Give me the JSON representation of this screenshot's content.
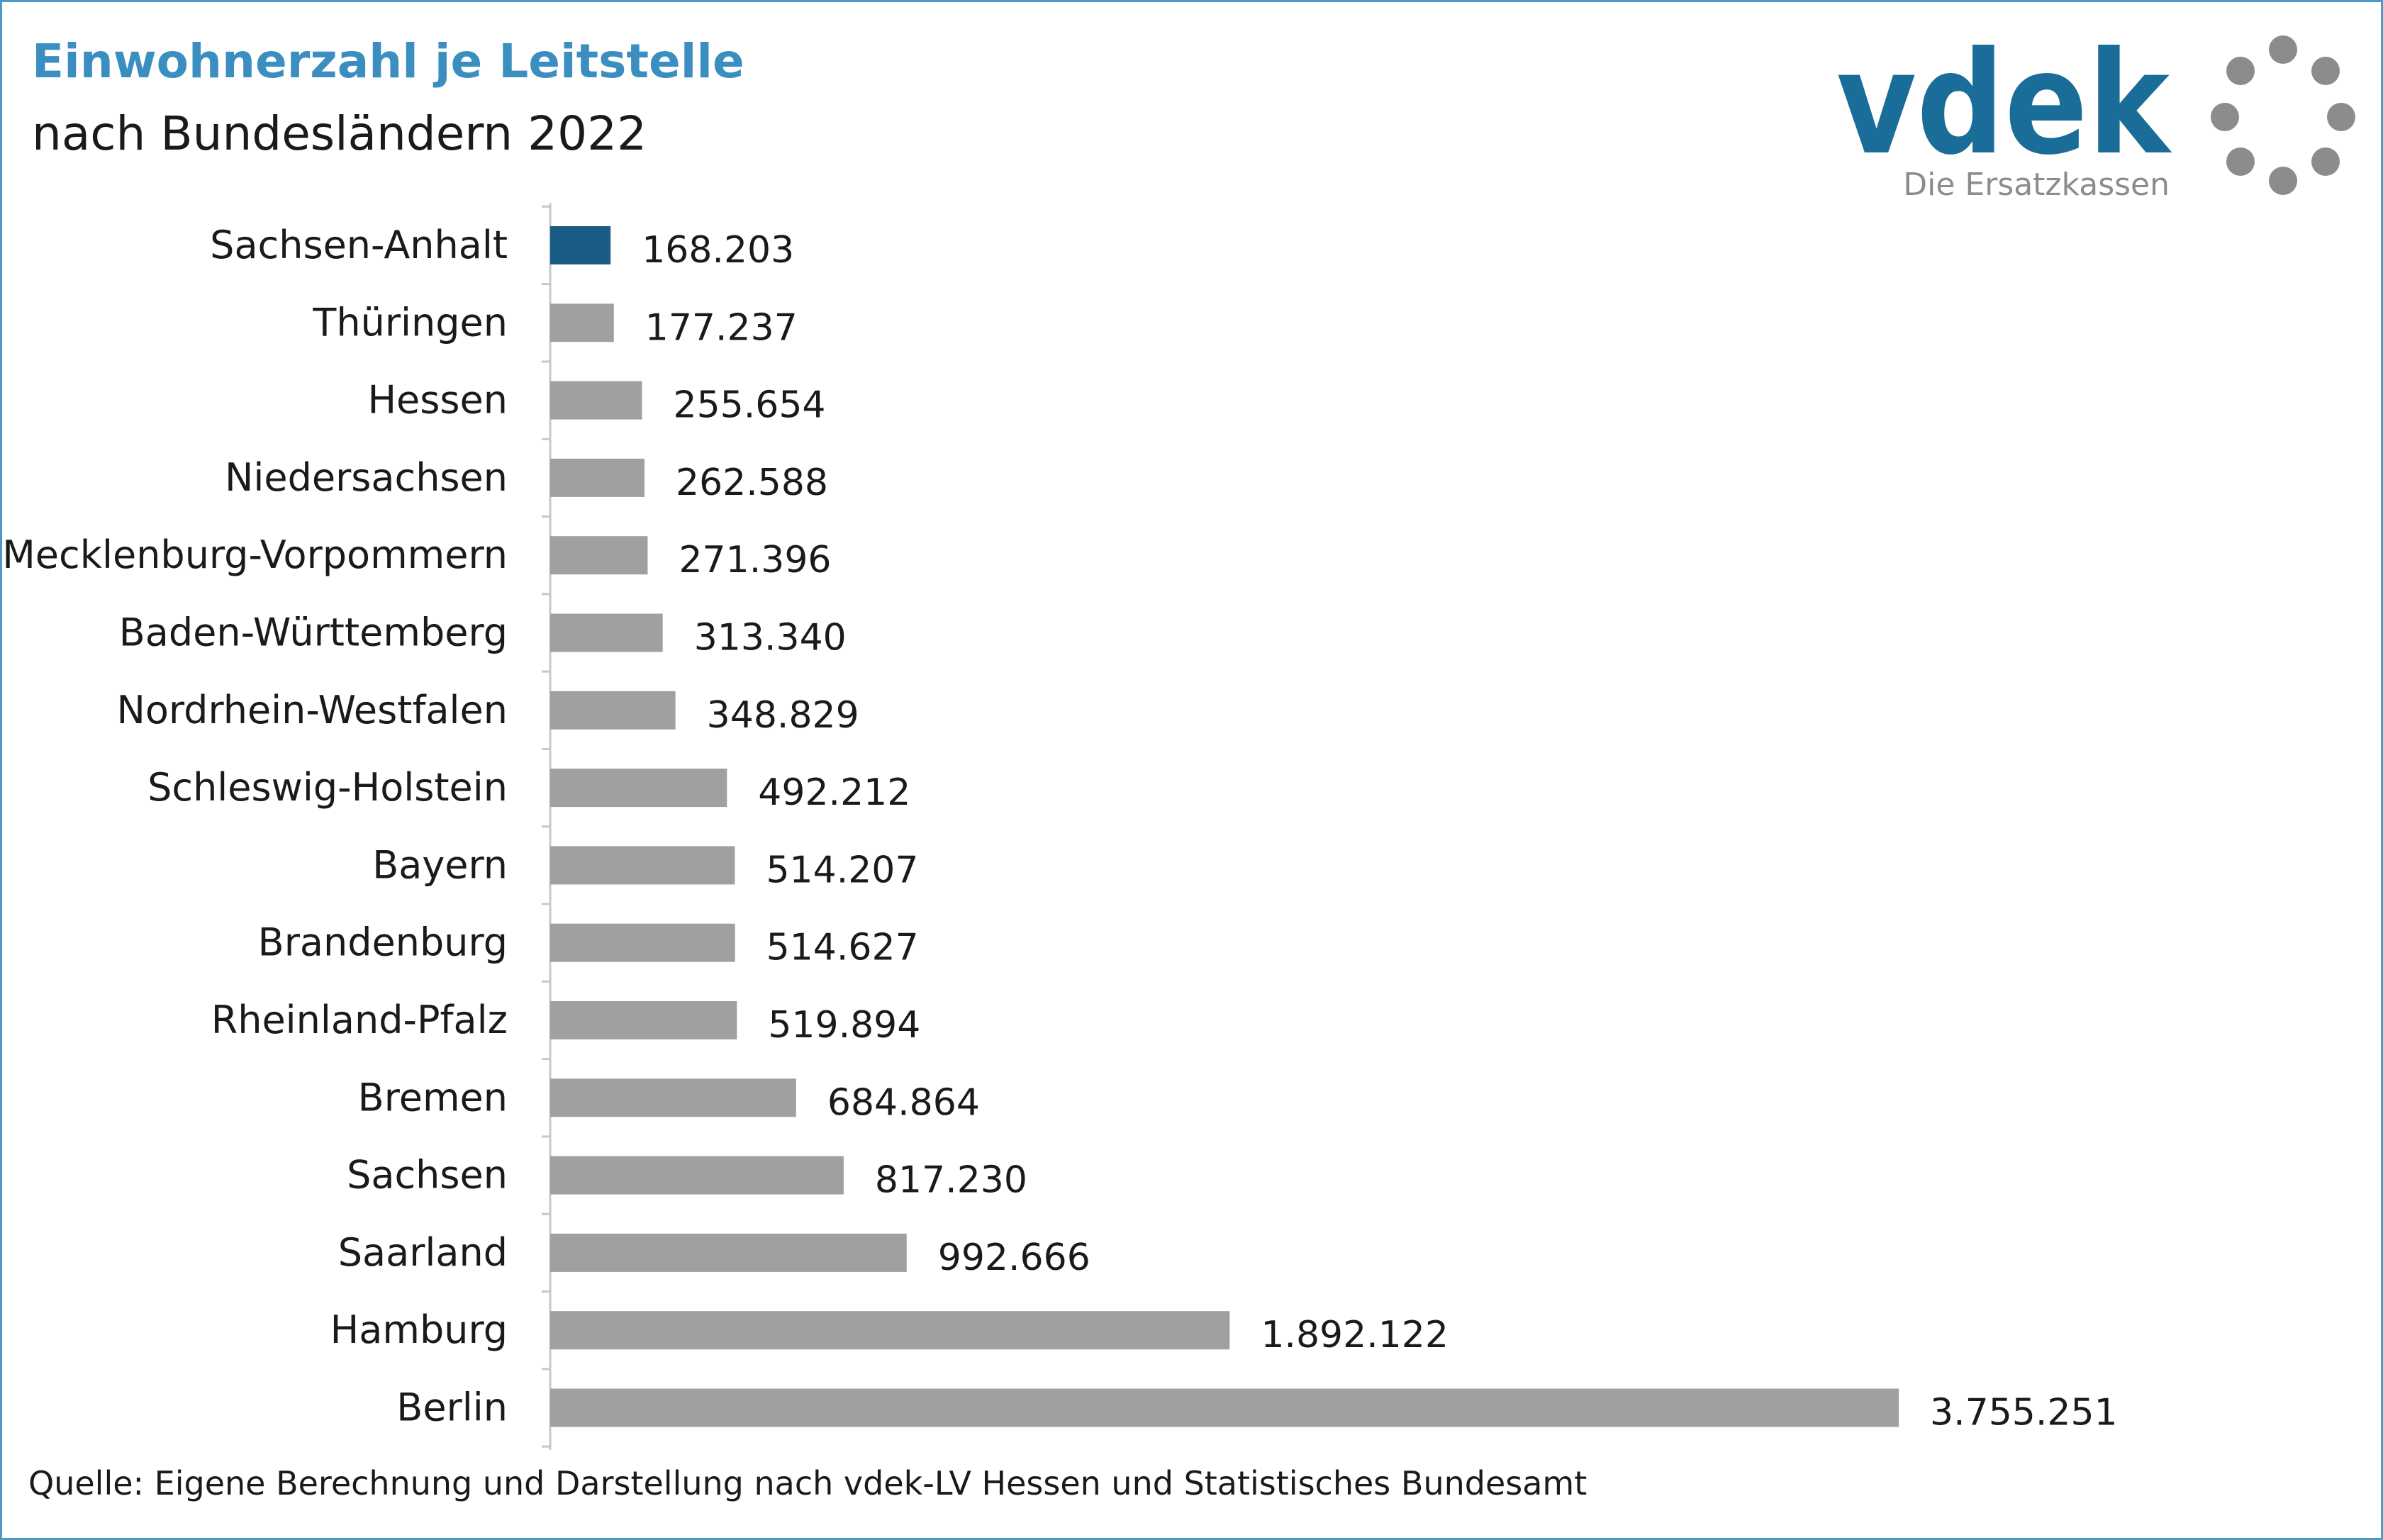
{
  "title": "Einwohnerzahl je Leitstelle",
  "subtitle": "nach Bundesländern 2022",
  "logo": {
    "wordmark": "vdek",
    "tagline": "Die Ersatzkassen",
    "color_primary": "#1a6d99",
    "color_secondary": "#8c8c8c"
  },
  "source": "Quelle: Eigene Berechnung und Darstellung nach vdek-LV Hessen und Statistisches Bundesamt",
  "colors": {
    "title": "#3b8fc0",
    "highlight_bar": "#1b5c87",
    "bar": "#a0a0a0",
    "frame": "#4a9cc4"
  },
  "chart_data": {
    "type": "bar",
    "orientation": "horizontal",
    "title": "Einwohnerzahl je Leitstelle",
    "subtitle": "nach Bundesländern 2022",
    "xlabel": "",
    "ylabel": "",
    "grid": false,
    "highlight": "Sachsen-Anhalt",
    "categories": [
      "Sachsen-Anhalt",
      "Thüringen",
      "Hessen",
      "Niedersachsen",
      "Mecklenburg-Vorpommern",
      "Baden-Württemberg",
      "Nordrhein-Westfalen",
      "Schleswig-Holstein",
      "Bayern",
      "Brandenburg",
      "Rheinland-Pfalz",
      "Bremen",
      "Sachsen",
      "Saarland",
      "Hamburg",
      "Berlin"
    ],
    "values": [
      168203,
      177237,
      255654,
      262588,
      271396,
      313340,
      348829,
      492212,
      514207,
      514627,
      519894,
      684864,
      817230,
      992666,
      1892122,
      3755251
    ],
    "value_labels": [
      "168.203",
      "177.237",
      "255.654",
      "262.588",
      "271.396",
      "313.340",
      "348.829",
      "492.212",
      "514.207",
      "514.627",
      "519.894",
      "684.864",
      "817.230",
      "992.666",
      "1.892.122",
      "3.755.251"
    ]
  }
}
